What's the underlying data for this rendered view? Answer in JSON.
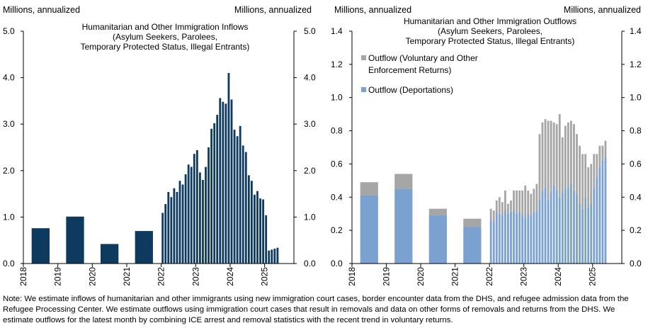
{
  "chart_data": [
    {
      "type": "bar",
      "id": "inflows",
      "title_lines": [
        "Humanitarian  and Other Immigration Inflows",
        "(Asylum Seekers, Parolees,",
        "Temporary Protected Status, Illegal Entrants)"
      ],
      "ylabel_left": "Millions, annualized",
      "ylabel_right": "Millions, annualized",
      "ylim": [
        0,
        5
      ],
      "yticks": [
        0.0,
        1.0,
        2.0,
        3.0,
        4.0,
        5.0
      ],
      "ytick_labels": [
        "0.0",
        "1.0",
        "2.0",
        "3.0",
        "4.0",
        "5.0"
      ],
      "xlim": [
        2018,
        2025.85
      ],
      "xtick_labels": [
        "2018",
        "2019",
        "2020",
        "2021",
        "2022",
        "2023",
        "2024",
        "2025"
      ],
      "color": "#0f3a5f",
      "annual": {
        "x": [
          2018.5,
          2019.5,
          2020.5,
          2021.5
        ],
        "values": [
          0.76,
          1.01,
          0.42,
          0.7
        ]
      },
      "monthly": {
        "start": 2022.0,
        "values": [
          1.09,
          1.28,
          1.54,
          1.43,
          1.62,
          1.54,
          1.78,
          1.7,
          1.92,
          2.13,
          2.08,
          2.36,
          2.44,
          1.96,
          1.8,
          2.08,
          2.5,
          2.9,
          3.02,
          3.2,
          3.56,
          3.48,
          3.44,
          4.1,
          3.53,
          2.88,
          2.74,
          2.96,
          2.54,
          2.4,
          1.9,
          1.78,
          1.48,
          1.56,
          1.4,
          1.38,
          1.04,
          0.28,
          0.3,
          0.32,
          0.34
        ]
      }
    },
    {
      "type": "stacked_bar",
      "id": "outflows",
      "title_lines": [
        "Humanitarian and Other Immigration Outflows",
        "(Asylum Seekers, Parolees,",
        "Temporary Protected Status, Illegal Entrants)"
      ],
      "ylabel_left": "Millions, annualized",
      "ylabel_right": "Millions, annualized",
      "ylim": [
        0,
        1.4
      ],
      "yticks": [
        0.0,
        0.2,
        0.4,
        0.6,
        0.8,
        1.0,
        1.2,
        1.4
      ],
      "ytick_labels": [
        "0.0",
        "0.2",
        "0.4",
        "0.6",
        "0.8",
        "1.0",
        "1.2",
        "1.4"
      ],
      "xlim": [
        2018,
        2025.85
      ],
      "xtick_labels": [
        "2018",
        "2019",
        "2020",
        "2021",
        "2022",
        "2023",
        "2024",
        "2025"
      ],
      "series": [
        {
          "name": "Outflow (Deportations)",
          "legend_lines": [
            "Outflow (Deportations)"
          ],
          "color": "#7ba1d0",
          "annual_values": [
            0.41,
            0.45,
            0.29,
            0.22
          ],
          "monthly_values": [
            0.26,
            0.25,
            0.31,
            0.3,
            0.29,
            0.32,
            0.3,
            0.31,
            0.32,
            0.3,
            0.31,
            0.29,
            0.28,
            0.3,
            0.29,
            0.31,
            0.32,
            0.38,
            0.44,
            0.46,
            0.38,
            0.43,
            0.47,
            0.44,
            0.4,
            0.43,
            0.45,
            0.46,
            0.48,
            0.44,
            0.42,
            0.36,
            0.33,
            0.4,
            0.34,
            0.36,
            0.45,
            0.52,
            0.58,
            0.62,
            0.64
          ]
        },
        {
          "name": "Outflow (Voluntary and Other Enforcement Returns)",
          "legend_lines": [
            "Outflow (Voluntary and Other",
            "Enforcement Returns)"
          ],
          "color": "#a6a6a6",
          "annual_values": [
            0.08,
            0.09,
            0.04,
            0.05
          ],
          "monthly_values": [
            0.07,
            0.07,
            0.07,
            0.1,
            0.08,
            0.12,
            0.06,
            0.07,
            0.12,
            0.14,
            0.13,
            0.15,
            0.19,
            0.14,
            0.13,
            0.14,
            0.16,
            0.4,
            0.41,
            0.41,
            0.48,
            0.43,
            0.38,
            0.4,
            0.5,
            0.33,
            0.38,
            0.39,
            0.38,
            0.4,
            0.36,
            0.35,
            0.33,
            0.26,
            0.24,
            0.24,
            0.21,
            0.14,
            0.13,
            0.09,
            0.1
          ]
        }
      ],
      "annual_x": [
        2018.5,
        2019.5,
        2020.5,
        2021.5
      ],
      "monthly_start": 2022.0
    }
  ],
  "note": "Note: We estimate inflows of humanitarian and other immigrants using new immigration court cases, border encounter data from the DHS, and refugee admission data from the Refugee Processing Center. We estimate outflows using immigration court cases that result in removals and data on other forms of removals and returns from the DHS.  We estimate outflows for the latest month by combining ICE arrest and removal statistics with the recent trend in voluntary returns."
}
